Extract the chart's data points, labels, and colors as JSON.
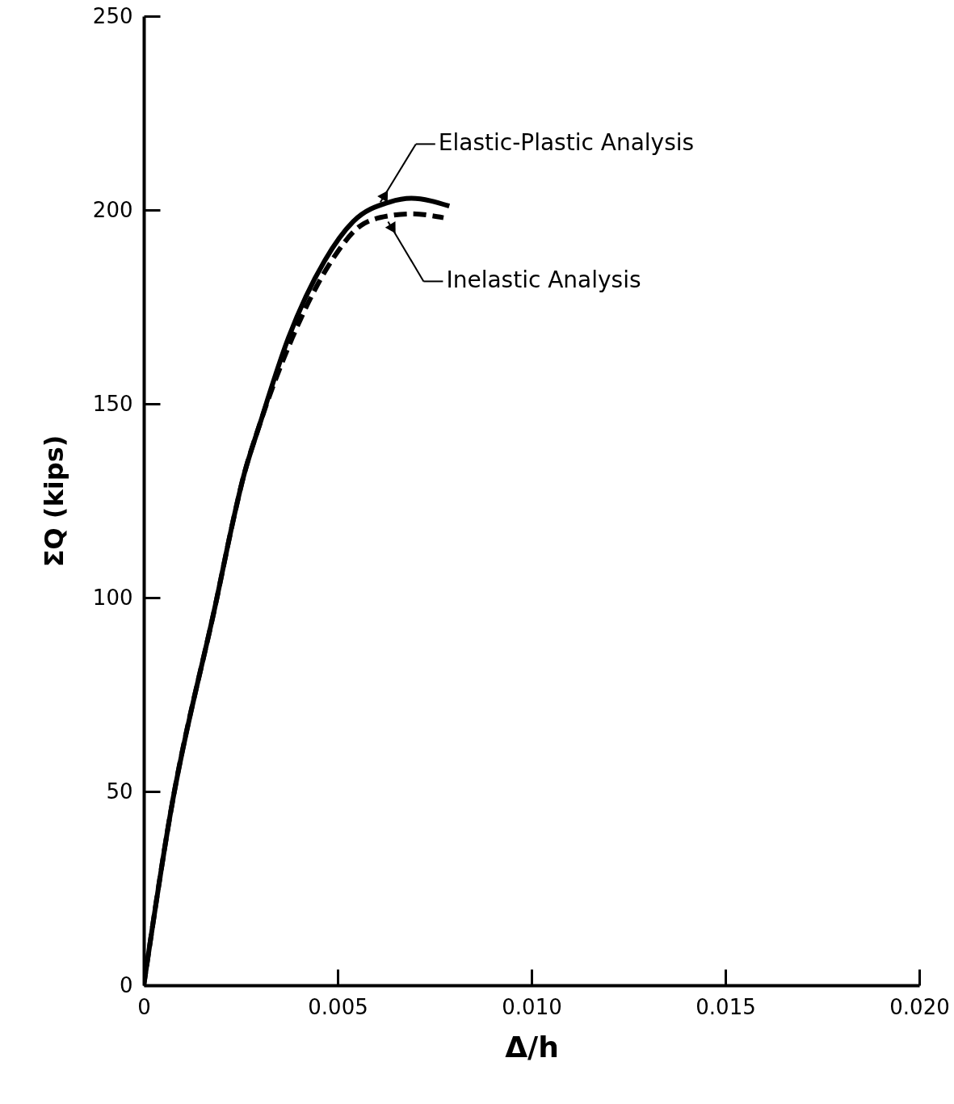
{
  "chart_data": {
    "type": "line",
    "xlabel": "Δ/h",
    "ylabel": "ΣQ (kips)",
    "xlim": [
      0,
      0.02
    ],
    "ylim": [
      0,
      250
    ],
    "xticks": [
      0,
      0.005,
      {
        "value": 0.01,
        "label": "0.010"
      },
      0.015,
      {
        "value": 0.02,
        "label": "0.020"
      }
    ],
    "yticks": [
      0,
      50,
      100,
      150,
      200,
      250
    ],
    "grid": false,
    "series": [
      {
        "color": "#000000",
        "line_style": "solid",
        "x": [
          0,
          0.00069,
          0.001875,
          0.00233,
          0.00254,
          0.003,
          0.00373,
          0.00467,
          0.0054,
          0.00633,
          0.0069,
          0.00788
        ],
        "values": [
          0,
          44.5,
          99.4,
          121,
          130,
          145,
          167,
          187,
          197,
          202,
          203,
          201
        ]
      },
      {
        "color": "#000000",
        "line_style": "dashed",
        "x": [
          0,
          0.00069,
          0.001875,
          0.00233,
          0.00254,
          0.003,
          0.00383,
          0.00485,
          0.0056,
          0.00633,
          0.0069,
          0.00773
        ],
        "values": [
          0,
          44.5,
          99.4,
          121,
          130,
          145,
          167,
          187,
          196,
          198.5,
          199,
          198
        ]
      }
    ],
    "annotations": [
      {
        "text": "Elastic-Plastic Analysis",
        "x": 0.0061,
        "y": 202
      },
      {
        "text": "Inelastic Analysis",
        "x": 0.0063,
        "y": 197
      }
    ]
  }
}
